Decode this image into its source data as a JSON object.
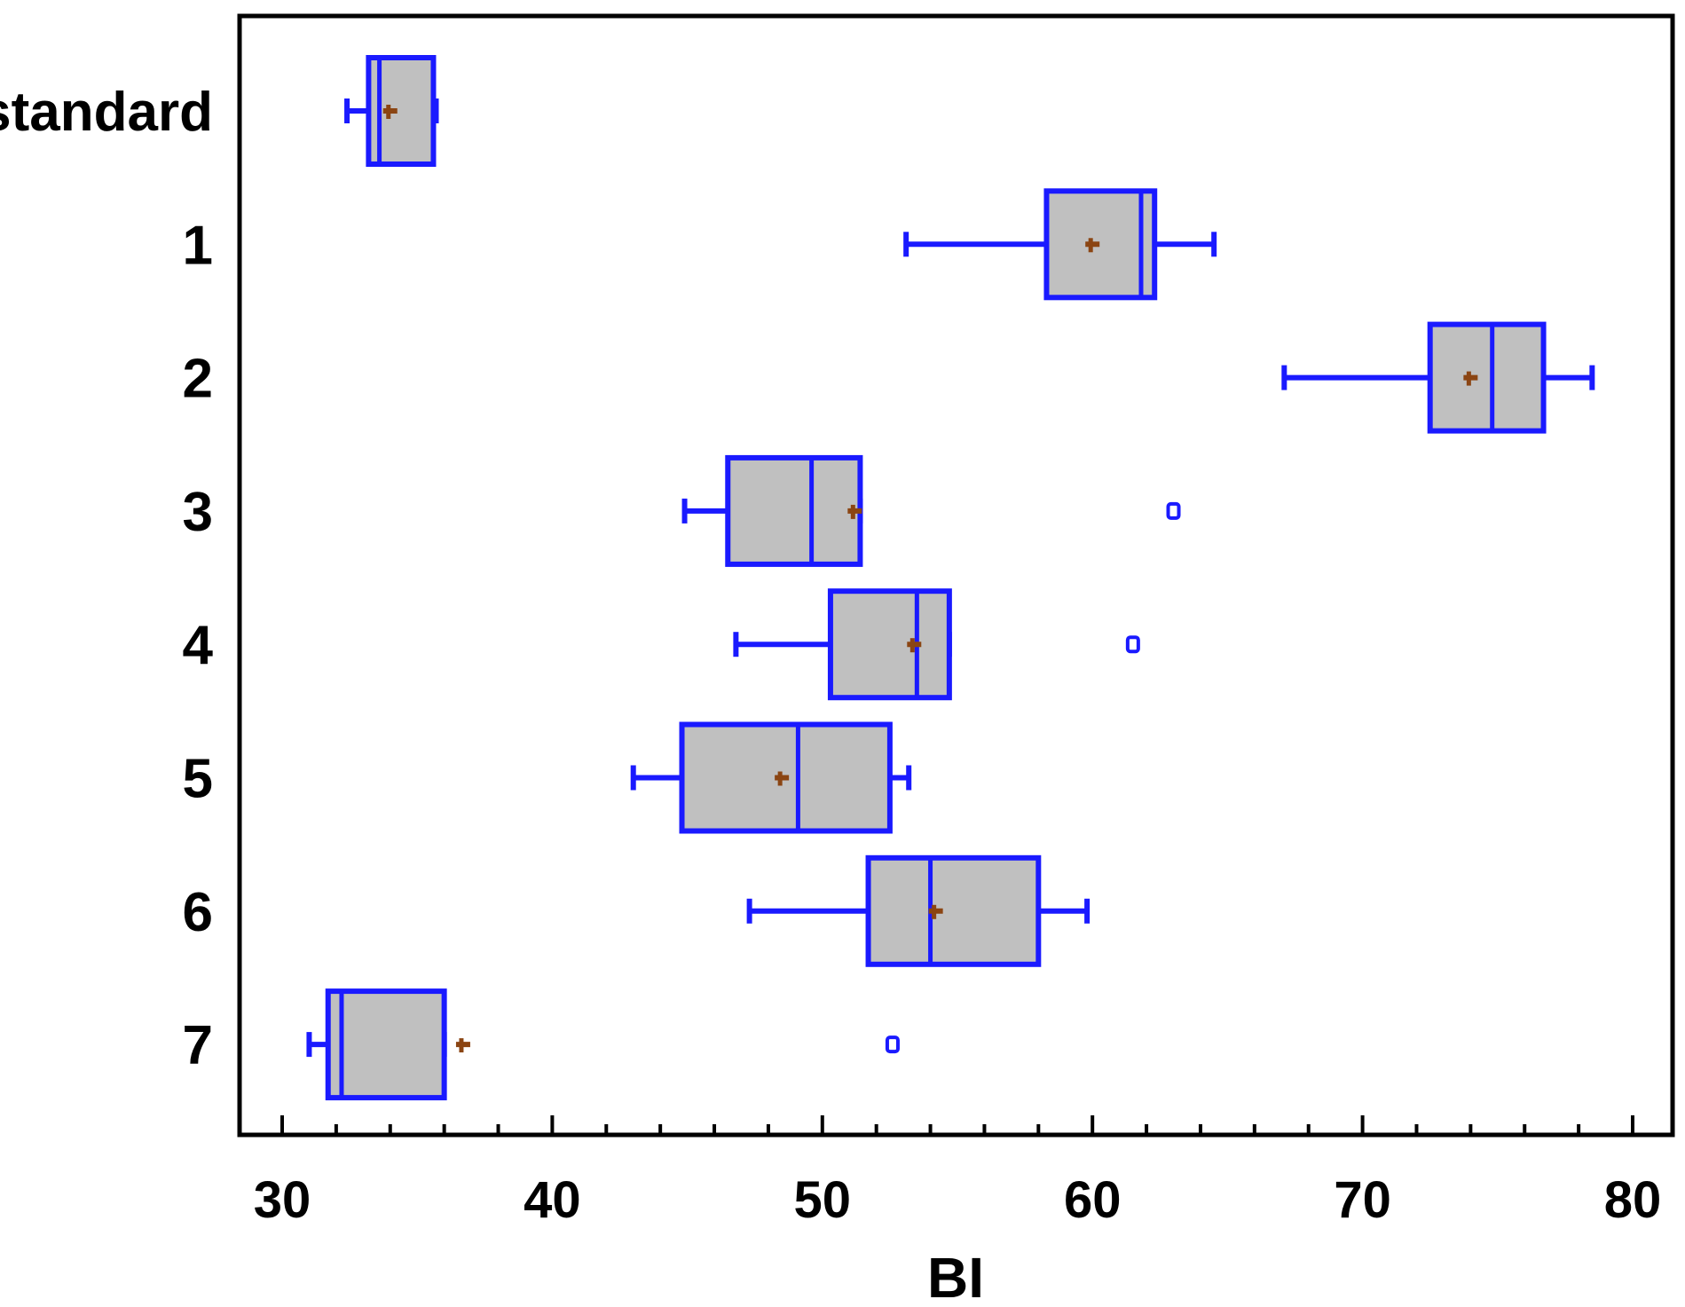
{
  "chart_data": {
    "type": "boxplot",
    "orientation": "horizontal",
    "xlabel": "BI",
    "xlim": [
      28.5,
      81.5
    ],
    "xticks": [
      30,
      40,
      50,
      60,
      70,
      80
    ],
    "xtick_labels": [
      "30",
      "40",
      "50",
      "60",
      "70",
      "80"
    ],
    "grid": false,
    "categories": [
      "standard",
      "1",
      "2",
      "3",
      "4",
      "5",
      "6",
      "7"
    ],
    "boxes": [
      {
        "label": "standard",
        "whisker_low": 32.4,
        "q1": 33.2,
        "median": 33.6,
        "q3": 35.6,
        "whisker_high": 35.7,
        "mean": 34.0,
        "outliers": []
      },
      {
        "label": "1",
        "whisker_low": 53.1,
        "q1": 58.3,
        "median": 61.8,
        "q3": 62.3,
        "whisker_high": 64.5,
        "mean": 60.0,
        "outliers": []
      },
      {
        "label": "2",
        "whisker_low": 67.1,
        "q1": 72.5,
        "median": 74.8,
        "q3": 76.7,
        "whisker_high": 78.5,
        "mean": 74.0,
        "outliers": []
      },
      {
        "label": "3",
        "whisker_low": 44.9,
        "q1": 46.5,
        "median": 49.6,
        "q3": 51.4,
        "whisker_high": 51.4,
        "mean": 51.2,
        "outliers": [
          63.0
        ]
      },
      {
        "label": "4",
        "whisker_low": 46.8,
        "q1": 50.3,
        "median": 53.5,
        "q3": 54.7,
        "whisker_high": 54.7,
        "mean": 53.4,
        "outliers": [
          61.5
        ]
      },
      {
        "label": "5",
        "whisker_low": 43.0,
        "q1": 44.8,
        "median": 49.1,
        "q3": 52.5,
        "whisker_high": 53.2,
        "mean": 48.5,
        "outliers": []
      },
      {
        "label": "6",
        "whisker_low": 47.3,
        "q1": 51.7,
        "median": 54.0,
        "q3": 58.0,
        "whisker_high": 59.8,
        "mean": 54.2,
        "outliers": []
      },
      {
        "label": "7",
        "whisker_low": 31.0,
        "q1": 31.7,
        "median": 32.2,
        "q3": 36.0,
        "whisker_high": 36.0,
        "mean": 36.7,
        "outliers": [
          52.6
        ]
      }
    ],
    "colors": {
      "box_stroke": "#1a1aff",
      "box_fill": "#c0c0c0",
      "mean_marker": "#8b4513",
      "axis": "#000000"
    }
  }
}
